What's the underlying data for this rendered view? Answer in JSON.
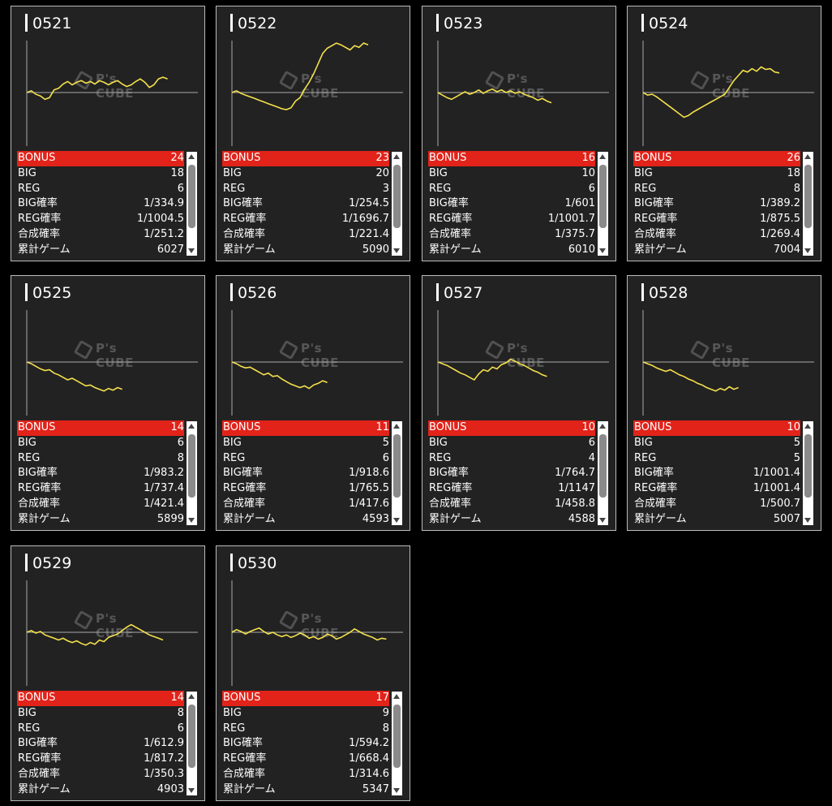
{
  "accent_color": "#e2231a",
  "line_color": "#f4e04d",
  "watermark": "P's CUBE",
  "stat_labels": {
    "bonus": "BONUS",
    "big": "BIG",
    "reg": "REG",
    "big_rate": "BIG確率",
    "reg_rate": "REG確率",
    "total_rate": "合成確率",
    "games": "累計ゲーム"
  },
  "machines": [
    {
      "id": "0521",
      "bonus": "24",
      "big": "18",
      "reg": "6",
      "big_rate": "1/334.9",
      "reg_rate": "1/1004.5",
      "total_rate": "1/251.2",
      "games": "6027",
      "graph": [
        0,
        2,
        -2,
        -4,
        -8,
        -6,
        3,
        5,
        10,
        13,
        9,
        12,
        14,
        11,
        13,
        10,
        14,
        12,
        9,
        12,
        14,
        10,
        7,
        9,
        13,
        16,
        12,
        6,
        9,
        16,
        18,
        16
      ]
    },
    {
      "id": "0522",
      "bonus": "23",
      "big": "20",
      "reg": "3",
      "big_rate": "1/254.5",
      "reg_rate": "1/1696.7",
      "total_rate": "1/221.4",
      "games": "5090",
      "graph": [
        0,
        2,
        -1,
        -3,
        -5,
        -7,
        -9,
        -11,
        -13,
        -15,
        -17,
        -19,
        -20,
        -18,
        -10,
        -6,
        4,
        12,
        22,
        34,
        46,
        52,
        55,
        58,
        56,
        53,
        50,
        55,
        53,
        58,
        56
      ]
    },
    {
      "id": "0523",
      "bonus": "16",
      "big": "10",
      "reg": "6",
      "big_rate": "1/601",
      "reg_rate": "1/1001.7",
      "total_rate": "1/375.7",
      "games": "6010",
      "graph": [
        0,
        -3,
        -6,
        -8,
        -5,
        -2,
        1,
        -2,
        0,
        3,
        -1,
        2,
        4,
        1,
        3,
        0,
        2,
        -1,
        1,
        -2,
        -4,
        -6,
        -9,
        -7,
        -10,
        -12
      ]
    },
    {
      "id": "0524",
      "bonus": "26",
      "big": "18",
      "reg": "8",
      "big_rate": "1/389.2",
      "reg_rate": "1/875.5",
      "total_rate": "1/269.4",
      "games": "7004",
      "graph": [
        0,
        -3,
        -2,
        -5,
        -9,
        -13,
        -17,
        -21,
        -25,
        -29,
        -27,
        -23,
        -20,
        -17,
        -14,
        -11,
        -8,
        -5,
        -2,
        6,
        14,
        20,
        26,
        24,
        28,
        25,
        30,
        27,
        28,
        24,
        23
      ]
    },
    {
      "id": "0525",
      "bonus": "14",
      "big": "6",
      "reg": "8",
      "big_rate": "1/983.2",
      "reg_rate": "1/737.4",
      "total_rate": "1/421.4",
      "games": "5899",
      "graph": [
        0,
        -2,
        -5,
        -8,
        -10,
        -9,
        -13,
        -15,
        -18,
        -21,
        -19,
        -22,
        -25,
        -28,
        -27,
        -30,
        -32,
        -34,
        -31,
        -33,
        -30,
        -32
      ]
    },
    {
      "id": "0526",
      "bonus": "11",
      "big": "5",
      "reg": "6",
      "big_rate": "1/918.6",
      "reg_rate": "1/765.5",
      "total_rate": "1/417.6",
      "games": "4593",
      "graph": [
        0,
        -2,
        -5,
        -7,
        -6,
        -9,
        -12,
        -15,
        -13,
        -17,
        -16,
        -20,
        -23,
        -26,
        -28,
        -30,
        -28,
        -31,
        -27,
        -25,
        -22,
        -24
      ]
    },
    {
      "id": "0527",
      "bonus": "10",
      "big": "6",
      "reg": "4",
      "big_rate": "1/764.7",
      "reg_rate": "1/1147",
      "total_rate": "1/458.8",
      "games": "4588",
      "graph": [
        0,
        -2,
        -4,
        -7,
        -10,
        -13,
        -15,
        -18,
        -21,
        -14,
        -9,
        -11,
        -6,
        -8,
        -3,
        -1,
        3,
        1,
        -2,
        -4,
        -7,
        -10,
        -12,
        -15,
        -17
      ]
    },
    {
      "id": "0528",
      "bonus": "10",
      "big": "5",
      "reg": "5",
      "big_rate": "1/1001.4",
      "reg_rate": "1/1001.4",
      "total_rate": "1/500.7",
      "games": "5007",
      "graph": [
        0,
        -2,
        -4,
        -7,
        -9,
        -11,
        -9,
        -12,
        -15,
        -17,
        -20,
        -22,
        -25,
        -27,
        -30,
        -32,
        -34,
        -31,
        -33,
        -29,
        -32,
        -30
      ]
    },
    {
      "id": "0529",
      "bonus": "14",
      "big": "8",
      "reg": "6",
      "big_rate": "1/612.9",
      "reg_rate": "1/817.2",
      "total_rate": "1/350.3",
      "games": "4903",
      "graph": [
        0,
        2,
        -1,
        1,
        -3,
        -5,
        -7,
        -9,
        -7,
        -10,
        -12,
        -10,
        -13,
        -15,
        -12,
        -14,
        -9,
        -11,
        -6,
        -4,
        -2,
        2,
        6,
        9,
        6,
        3,
        0,
        -3,
        -5,
        -7,
        -9
      ]
    },
    {
      "id": "0530",
      "bonus": "17",
      "big": "9",
      "reg": "8",
      "big_rate": "1/594.2",
      "reg_rate": "1/668.4",
      "total_rate": "1/314.6",
      "games": "5347",
      "graph": [
        0,
        3,
        1,
        -2,
        1,
        3,
        5,
        1,
        -2,
        0,
        -3,
        -5,
        -3,
        -6,
        -4,
        -1,
        -3,
        -7,
        -5,
        -8,
        -6,
        -2,
        -4,
        -8,
        -6,
        -3,
        0,
        4,
        1,
        -2,
        -4,
        -6,
        -9,
        -7,
        -8
      ]
    }
  ]
}
